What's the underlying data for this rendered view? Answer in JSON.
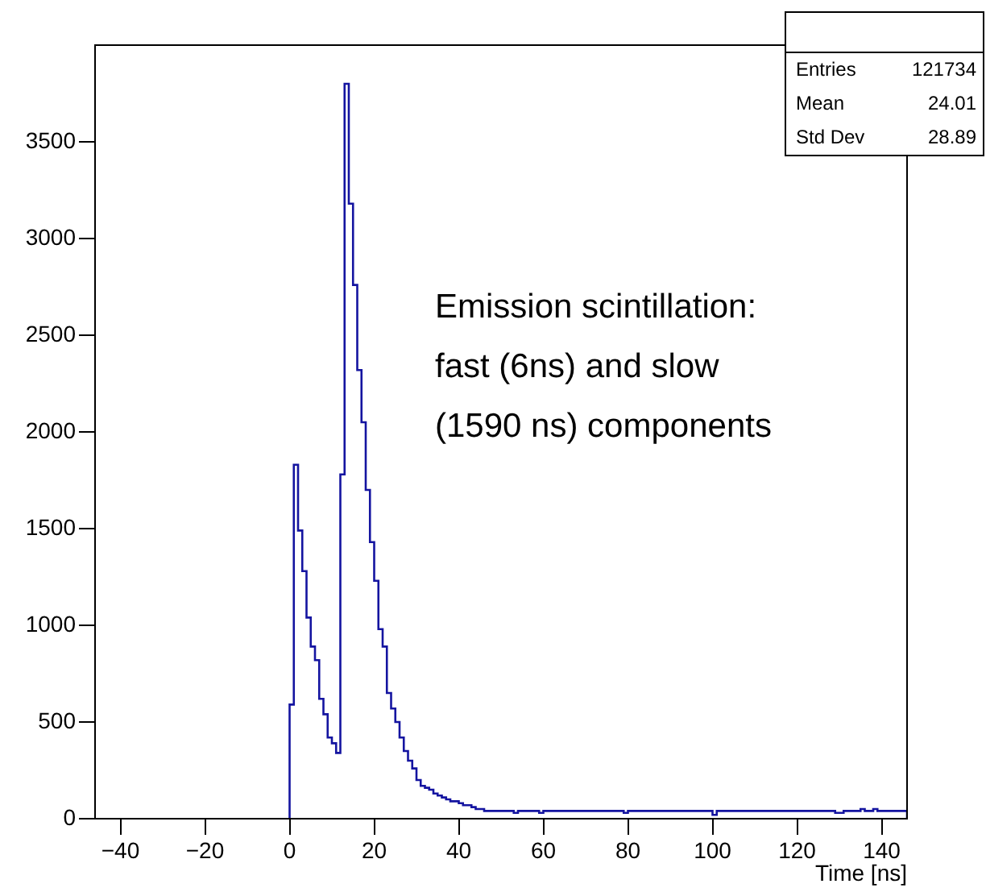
{
  "chart_data": {
    "type": "histogram",
    "xlabel": "Time [ns]",
    "bins": [
      0,
      1,
      2,
      3,
      4,
      5,
      6,
      7,
      8,
      9,
      10,
      11,
      12,
      13,
      14,
      15,
      16,
      17,
      18,
      19,
      20,
      21,
      22,
      23,
      24,
      25,
      26,
      27,
      28,
      29,
      30,
      31,
      32,
      33,
      34,
      35,
      36,
      37,
      38,
      39,
      40,
      41,
      42,
      43,
      44,
      45,
      46,
      47,
      48,
      49,
      50,
      51,
      52,
      53,
      54,
      55,
      56,
      57,
      58,
      59,
      60,
      61,
      62,
      63,
      64,
      65,
      66,
      67,
      68,
      69,
      70,
      71,
      72,
      73,
      74,
      75,
      76,
      77,
      78,
      79,
      80,
      81,
      82,
      83,
      84,
      85,
      86,
      87,
      88,
      89,
      90,
      91,
      92,
      93,
      94,
      95,
      96,
      97,
      98,
      99,
      100,
      101,
      102,
      103,
      104,
      105,
      106,
      107,
      108,
      109,
      110,
      111,
      112,
      113,
      114,
      115,
      116,
      117,
      118,
      119,
      120,
      121,
      122,
      123,
      124,
      125,
      126,
      127,
      128,
      129,
      130,
      131,
      132,
      133,
      134,
      135,
      136,
      137,
      138,
      139,
      140,
      141,
      142,
      143,
      144,
      145,
      146
    ],
    "values": [
      590,
      1830,
      1490,
      1280,
      1040,
      890,
      820,
      620,
      540,
      420,
      390,
      340,
      1780,
      3800,
      3180,
      2760,
      2320,
      2050,
      1700,
      1430,
      1230,
      980,
      890,
      650,
      570,
      500,
      420,
      350,
      300,
      260,
      200,
      170,
      160,
      150,
      130,
      120,
      110,
      100,
      90,
      90,
      80,
      70,
      70,
      60,
      50,
      50,
      40,
      40,
      40,
      40,
      40,
      40,
      40,
      30,
      40,
      40,
      40,
      40,
      40,
      30,
      40,
      40,
      40,
      40,
      40,
      40,
      40,
      40,
      40,
      40,
      40,
      40,
      40,
      40,
      40,
      40,
      40,
      40,
      40,
      30,
      40,
      40,
      40,
      40,
      40,
      40,
      40,
      40,
      40,
      40,
      40,
      40,
      40,
      40,
      40,
      40,
      40,
      40,
      40,
      40,
      20,
      40,
      40,
      40,
      40,
      40,
      40,
      40,
      40,
      40,
      40,
      40,
      40,
      40,
      40,
      40,
      40,
      40,
      40,
      40,
      40,
      40,
      40,
      40,
      40,
      40,
      40,
      40,
      40,
      30,
      30,
      40,
      40,
      40,
      40,
      50,
      40,
      40,
      50,
      40,
      40,
      40,
      40,
      40,
      40,
      40
    ],
    "color": "#1414a0",
    "xlim": [
      -46,
      146
    ],
    "xticks": [
      -40,
      -20,
      0,
      20,
      40,
      60,
      80,
      100,
      120,
      140
    ],
    "ylim": [
      0,
      4000
    ],
    "yticks": [
      0,
      500,
      1000,
      1500,
      2000,
      2500,
      3000,
      3500
    ],
    "grid": false,
    "legend": false,
    "annotations": [
      "Emission scintillation:\nfast (6ns) and slow\n(1590 ns) components",
      "Entries 121734",
      "Mean 24.01",
      "Std Dev 28.89"
    ]
  }
}
